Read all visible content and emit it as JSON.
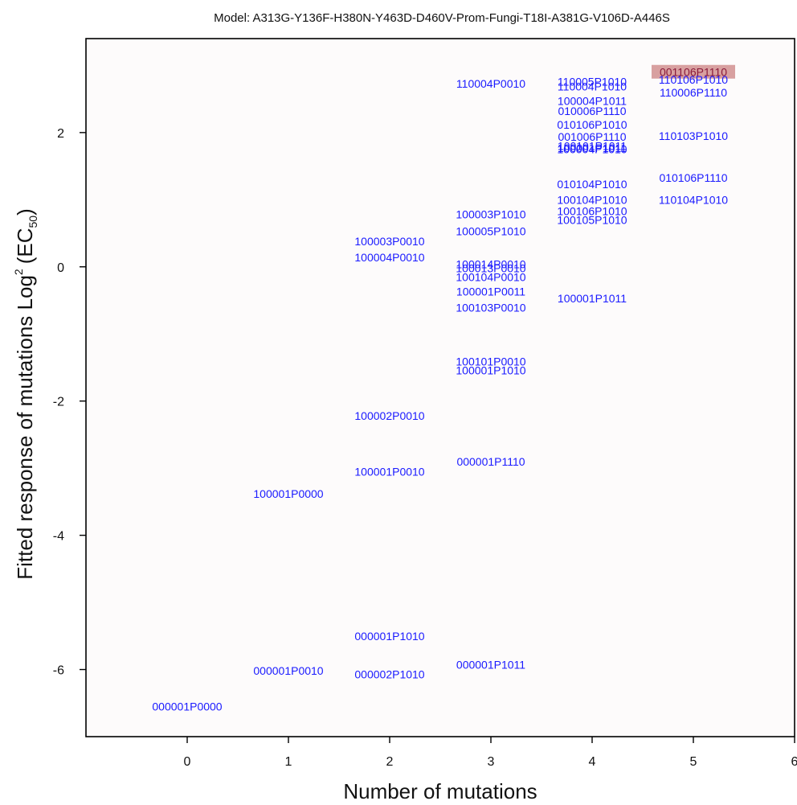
{
  "chart_data": {
    "type": "scatter",
    "title": "Model: A313G-Y136F-H380N-Y463D-D460V-Prom-Fungi-T18I-A381G-V106D-A446S",
    "xlabel": "Number of mutations",
    "ylabel_main": "Fitted response of mutations Log",
    "ylabel_sup": "2",
    "ylabel_paren_open": "(EC",
    "ylabel_sub": "50",
    "ylabel_paren_close": ")",
    "xlim": [
      -1,
      6
    ],
    "ylim": [
      -7,
      3.4
    ],
    "x_ticks": [
      0,
      1,
      2,
      3,
      4,
      5,
      6
    ],
    "y_ticks": [
      -6,
      -4,
      -2,
      0,
      2
    ],
    "grid": false,
    "colors": {
      "label": "#1a1aff",
      "highlight_bg": "#d8a0a0",
      "highlight_text": "#8a1a3a",
      "plot_bg": "#fdfbfb"
    },
    "points": [
      {
        "label": "000001P0000",
        "x": 0,
        "y": -6.55
      },
      {
        "label": "100001P0000",
        "x": 1,
        "y": -3.38
      },
      {
        "label": "000001P0010",
        "x": 1,
        "y": -6.02
      },
      {
        "label": "100003P0010",
        "x": 2,
        "y": 0.38
      },
      {
        "label": "100004P0010",
        "x": 2,
        "y": 0.14
      },
      {
        "label": "100002P0010",
        "x": 2,
        "y": -2.22
      },
      {
        "label": "100001P0010",
        "x": 2,
        "y": -3.05
      },
      {
        "label": "000001P1010",
        "x": 2,
        "y": -5.5
      },
      {
        "label": "000002P1010",
        "x": 2,
        "y": -6.07
      },
      {
        "label": "110004P0010",
        "x": 3,
        "y": 2.73
      },
      {
        "label": "100003P1010",
        "x": 3,
        "y": 0.78
      },
      {
        "label": "100005P1010",
        "x": 3,
        "y": 0.53
      },
      {
        "label": "100014P0010",
        "x": 3,
        "y": 0.04
      },
      {
        "label": "100013P0010",
        "x": 3,
        "y": -0.02
      },
      {
        "label": "100104P0010",
        "x": 3,
        "y": -0.15
      },
      {
        "label": "100001P0011",
        "x": 3,
        "y": -0.37
      },
      {
        "label": "100103P0010",
        "x": 3,
        "y": -0.61
      },
      {
        "label": "100101P0010",
        "x": 3,
        "y": -1.41
      },
      {
        "label": "100001P1010",
        "x": 3,
        "y": -1.54
      },
      {
        "label": "000001P1110",
        "x": 3,
        "y": -2.9
      },
      {
        "label": "000001P1011",
        "x": 3,
        "y": -5.93
      },
      {
        "label": "110005P1010",
        "x": 4,
        "y": 2.76
      },
      {
        "label": "110004P1010",
        "x": 4,
        "y": 2.69
      },
      {
        "label": "100004P1011",
        "x": 4,
        "y": 2.47
      },
      {
        "label": "010006P1110",
        "x": 4,
        "y": 2.32
      },
      {
        "label": "010106P1010",
        "x": 4,
        "y": 2.12
      },
      {
        "label": "001006P1110",
        "x": 4,
        "y": 1.94
      },
      {
        "label": "100101P1011",
        "x": 4,
        "y": 1.8
      },
      {
        "label": "100001P1011",
        "x": 4,
        "y": 1.77
      },
      {
        "label": "100004P1010",
        "x": 4,
        "y": 1.75
      },
      {
        "label": "010104P1010",
        "x": 4,
        "y": 1.23
      },
      {
        "label": "100104P1010",
        "x": 4,
        "y": 1.0
      },
      {
        "label": "100106P1010",
        "x": 4,
        "y": 0.83
      },
      {
        "label": "100105P1010",
        "x": 4,
        "y": 0.7
      },
      {
        "label": "100001P1011",
        "x": 4,
        "y": -0.47
      },
      {
        "label": "001106P1110",
        "x": 5,
        "y": 2.9,
        "highlight": true
      },
      {
        "label": "110106P1010",
        "x": 5,
        "y": 2.79
      },
      {
        "label": "110006P1110",
        "x": 5,
        "y": 2.6
      },
      {
        "label": "110103P1010",
        "x": 5,
        "y": 1.95
      },
      {
        "label": "010106P1110",
        "x": 5,
        "y": 1.33
      },
      {
        "label": "110104P1010",
        "x": 5,
        "y": 1.0
      }
    ]
  }
}
